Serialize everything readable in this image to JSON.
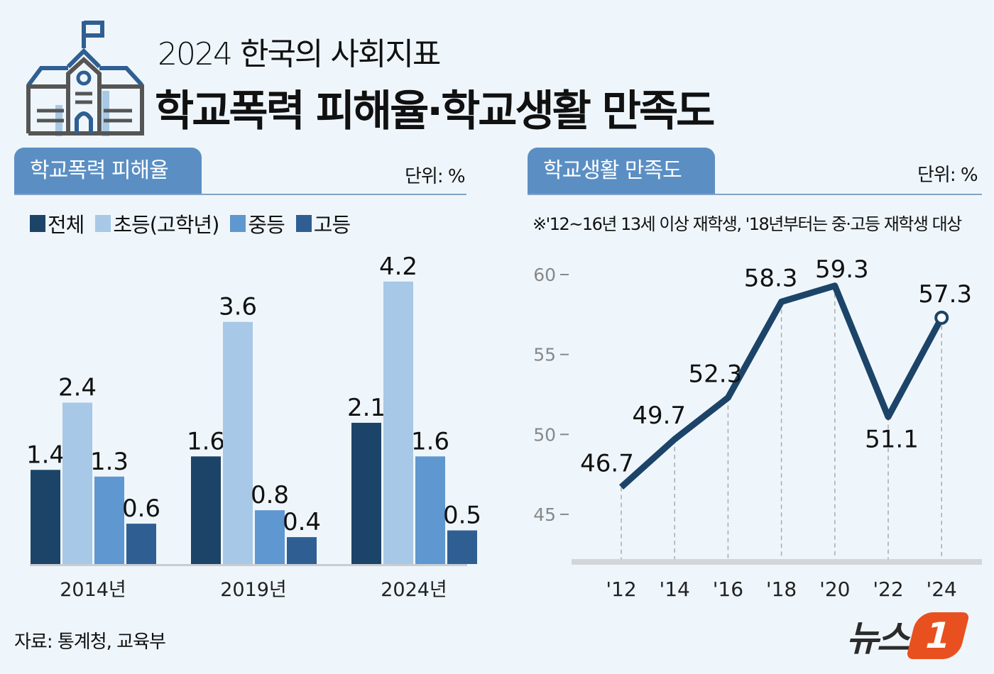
{
  "header": {
    "supertitle": "2024 한국의 사회지표",
    "title": "학교폭력 피해율·학교생활 만족도",
    "icon": "school-building-icon"
  },
  "source": "자료: 통계청, 교육부",
  "logo": {
    "text": "뉴스1",
    "accent": "#e8501f"
  },
  "colors": {
    "background": "#eff6fb",
    "tab": "#5b8fc4",
    "line": "#1c4468"
  },
  "chart_data": [
    {
      "type": "bar",
      "title": "학교폭력 피해율",
      "unit": "단위: %",
      "categories": [
        "2014년",
        "2019년",
        "2024년"
      ],
      "series": [
        {
          "name": "전체",
          "color": "#1c4468",
          "values": [
            1.4,
            1.6,
            2.1
          ]
        },
        {
          "name": "초등(고학년)",
          "color": "#a7c8e6",
          "values": [
            2.4,
            3.6,
            4.2
          ]
        },
        {
          "name": "중등",
          "color": "#5f97d0",
          "values": [
            1.3,
            0.8,
            1.6
          ]
        },
        {
          "name": "고등",
          "color": "#2f5f92",
          "values": [
            0.6,
            0.4,
            0.5
          ]
        }
      ],
      "ylim": [
        0,
        4.2
      ],
      "legend": "top-left",
      "grid": false
    },
    {
      "type": "line",
      "title": "학교생활 만족도",
      "unit": "단위: %",
      "note": "※'12~16년 13세 이상 재학생, '18년부터는 중·고등 재학생 대상",
      "x": [
        "'12",
        "'14",
        "'16",
        "'18",
        "'20",
        "'22",
        "'24"
      ],
      "values": [
        46.7,
        49.7,
        52.3,
        58.3,
        59.3,
        51.1,
        57.3
      ],
      "yticks": [
        45,
        50,
        55,
        60
      ],
      "ylim": [
        41.5,
        60
      ],
      "grid": false,
      "last_point_marker": "hollow-circle"
    }
  ]
}
